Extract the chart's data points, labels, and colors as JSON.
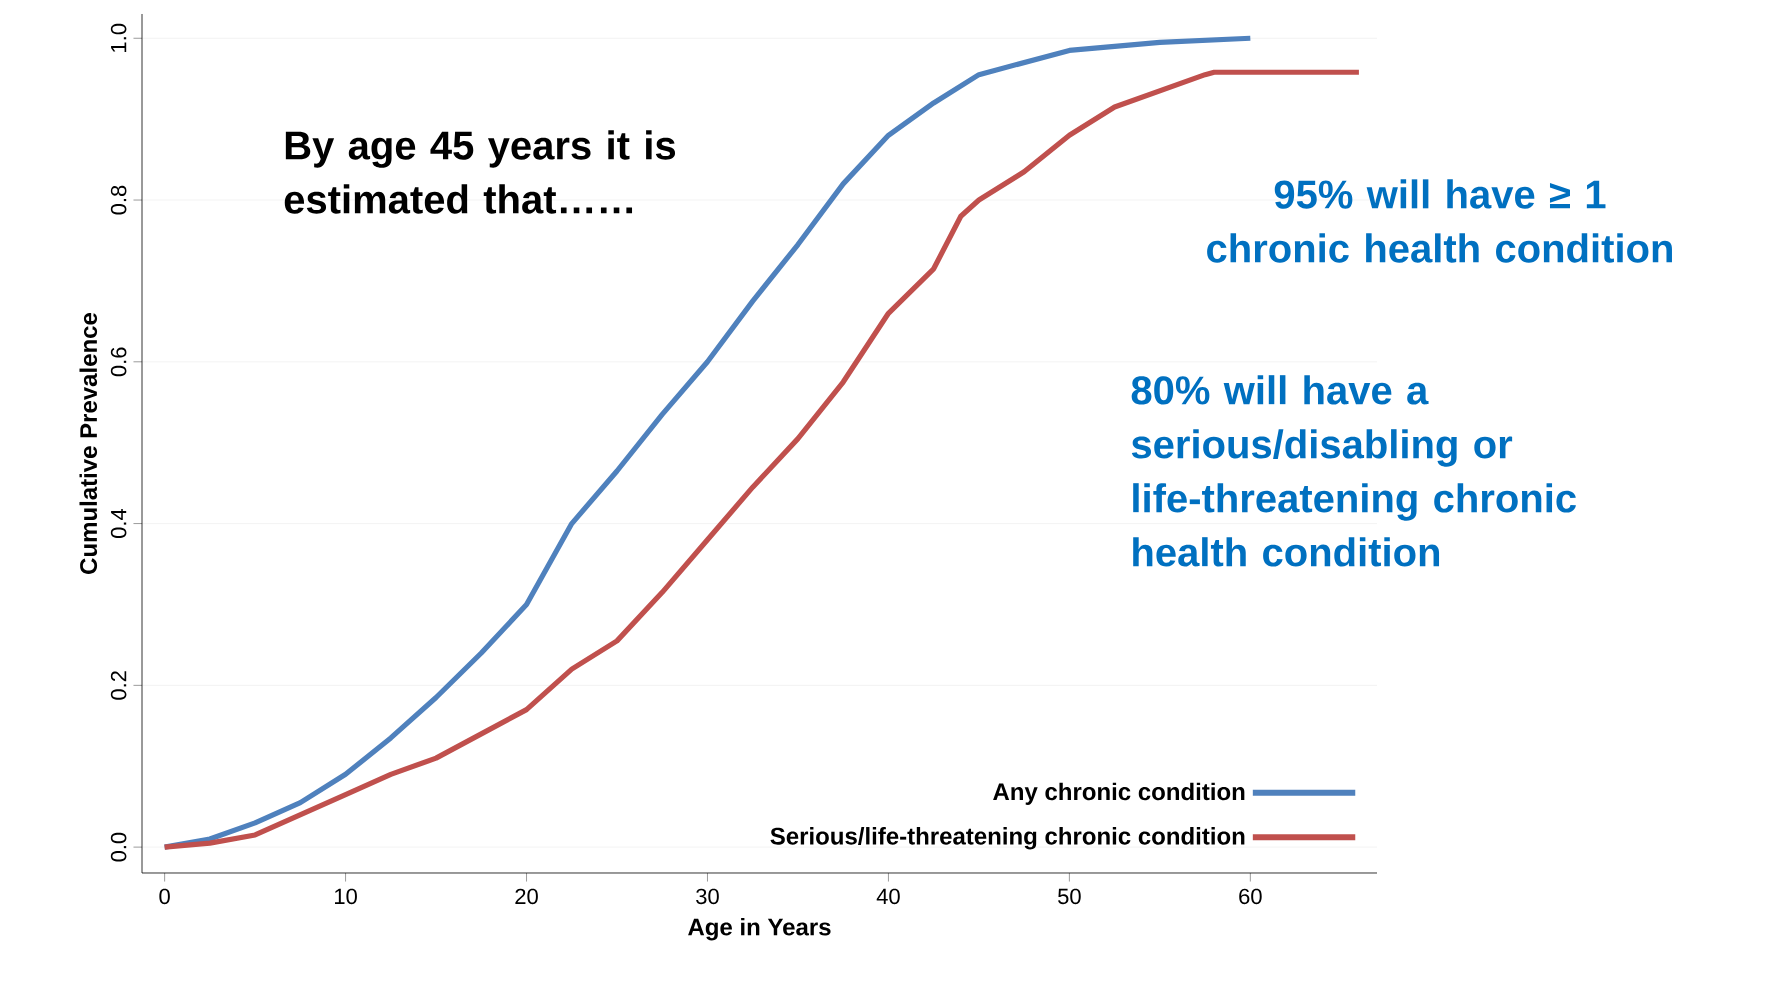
{
  "chart_data": {
    "type": "line",
    "xlabel": "Age in Years",
    "ylabel": "Cumulative Prevalence",
    "series": [
      {
        "name": "Any chronic condition",
        "color": "#4f81bd",
        "x": [
          0,
          2.5,
          5,
          7.5,
          10,
          12.5,
          15,
          17.5,
          20,
          22.5,
          25,
          27.5,
          30,
          32.5,
          35,
          37.5,
          40,
          42.5,
          45,
          47.5,
          50,
          55,
          60
        ],
        "values": [
          0,
          0.01,
          0.03,
          0.055,
          0.09,
          0.135,
          0.185,
          0.24,
          0.3,
          0.4,
          0.465,
          0.535,
          0.6,
          0.675,
          0.745,
          0.82,
          0.88,
          0.92,
          0.955,
          0.97,
          0.985,
          0.995,
          1.0
        ]
      },
      {
        "name": "Serious/life-threatening chronic condition",
        "color": "#c0504d",
        "x": [
          0,
          2.5,
          5,
          7.5,
          10,
          12.5,
          15,
          17.5,
          20,
          22.5,
          25,
          27.5,
          30,
          32.5,
          35,
          37.5,
          40,
          42.5,
          44,
          45,
          47.5,
          50,
          52.5,
          55,
          57.5,
          58,
          66
        ],
        "values": [
          0,
          0.005,
          0.015,
          0.04,
          0.065,
          0.09,
          0.11,
          0.14,
          0.17,
          0.22,
          0.255,
          0.315,
          0.38,
          0.445,
          0.505,
          0.575,
          0.66,
          0.715,
          0.78,
          0.8,
          0.835,
          0.88,
          0.915,
          0.935,
          0.955,
          0.958,
          0.958
        ]
      }
    ],
    "xlim": [
      -1.25,
      67
    ],
    "ylim": [
      -0.032,
      1.03
    ],
    "xticks": [
      0,
      10,
      20,
      30,
      40,
      50,
      60
    ],
    "yticks": [
      {
        "value": 0,
        "label": "0.0"
      },
      {
        "value": 0.2,
        "label": "0.2"
      },
      {
        "value": 0.4,
        "label": "0.4"
      },
      {
        "value": 0.6,
        "label": "0.6"
      },
      {
        "value": 0.8,
        "label": "0.8"
      },
      {
        "value": 1.0,
        "label": "1.0"
      }
    ],
    "grid": "y",
    "legend": "bottom right",
    "marker": "none",
    "line_style": "solid",
    "annotations": [
      "By age 45 years it is estimated that……",
      "95% will have ≥ 1 chronic health condition",
      "80% will have a serious/disabling or life-threatening chronic health condition"
    ]
  }
}
